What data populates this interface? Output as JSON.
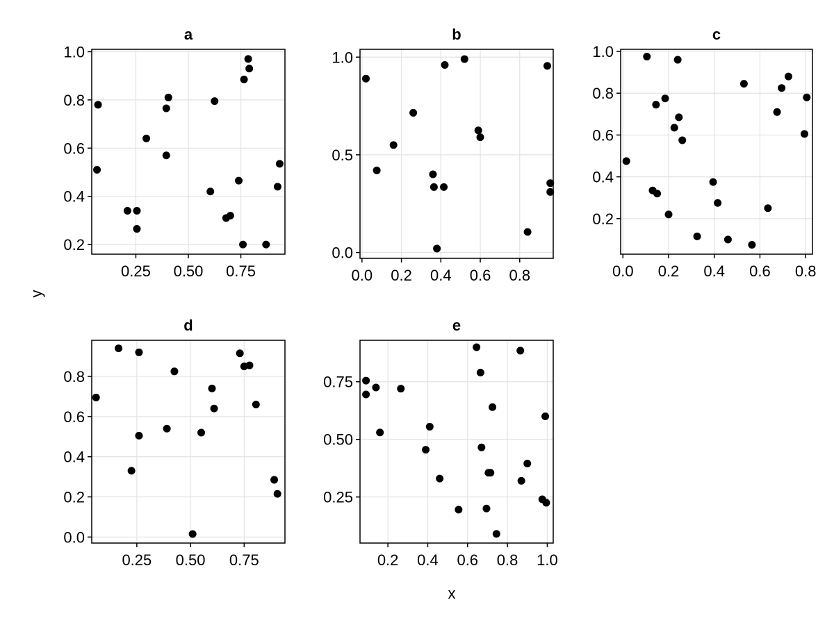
{
  "chart_data": {
    "type": "scatter",
    "xlabel": "x",
    "ylabel": "y",
    "grid": true,
    "point_color": "#000000",
    "panels": [
      {
        "title": "a",
        "xlim": [
          0.04,
          0.96
        ],
        "ylim": [
          0.16,
          1.01
        ],
        "xticks": [
          0.25,
          0.5,
          0.75
        ],
        "xtick_labels": [
          "0.25",
          "0.50",
          "0.75"
        ],
        "yticks": [
          0.2,
          0.4,
          0.6,
          0.8,
          1.0
        ],
        "ytick_labels": [
          "0.2",
          "0.4",
          "0.6",
          "0.8",
          "1.0"
        ],
        "points": [
          [
            0.07,
            0.78
          ],
          [
            0.065,
            0.51
          ],
          [
            0.21,
            0.34
          ],
          [
            0.255,
            0.34
          ],
          [
            0.255,
            0.265
          ],
          [
            0.3,
            0.64
          ],
          [
            0.395,
            0.57
          ],
          [
            0.395,
            0.765
          ],
          [
            0.405,
            0.81
          ],
          [
            0.605,
            0.42
          ],
          [
            0.625,
            0.795
          ],
          [
            0.68,
            0.31
          ],
          [
            0.7,
            0.32
          ],
          [
            0.74,
            0.465
          ],
          [
            0.76,
            0.2
          ],
          [
            0.765,
            0.885
          ],
          [
            0.79,
            0.93
          ],
          [
            0.785,
            0.97
          ],
          [
            0.87,
            0.2
          ],
          [
            0.925,
            0.44
          ],
          [
            0.935,
            0.535
          ]
        ]
      },
      {
        "title": "b",
        "xlim": [
          -0.01,
          0.97
        ],
        "ylim": [
          -0.03,
          1.04
        ],
        "xticks": [
          0.0,
          0.2,
          0.4,
          0.6,
          0.8
        ],
        "xtick_labels": [
          "0.0",
          "0.2",
          "0.4",
          "0.6",
          "0.8"
        ],
        "yticks": [
          0.0,
          0.5,
          1.0
        ],
        "ytick_labels": [
          "0.0",
          "0.5",
          "1.0"
        ],
        "points": [
          [
            0.02,
            0.89
          ],
          [
            0.075,
            0.42
          ],
          [
            0.16,
            0.55
          ],
          [
            0.26,
            0.715
          ],
          [
            0.36,
            0.4
          ],
          [
            0.365,
            0.335
          ],
          [
            0.38,
            0.02
          ],
          [
            0.415,
            0.335
          ],
          [
            0.42,
            0.96
          ],
          [
            0.52,
            0.99
          ],
          [
            0.59,
            0.625
          ],
          [
            0.6,
            0.59
          ],
          [
            0.84,
            0.105
          ],
          [
            0.94,
            0.955
          ],
          [
            0.955,
            0.355
          ],
          [
            0.955,
            0.31
          ]
        ]
      },
      {
        "title": "c",
        "xlim": [
          -0.01,
          0.83
        ],
        "ylim": [
          0.03,
          1.01
        ],
        "xticks": [
          0.0,
          0.2,
          0.4,
          0.6,
          0.8
        ],
        "xtick_labels": [
          "0.0",
          "0.2",
          "0.4",
          "0.6",
          "0.8"
        ],
        "yticks": [
          0.2,
          0.4,
          0.6,
          0.8,
          1.0
        ],
        "ytick_labels": [
          "0.2",
          "0.4",
          "0.6",
          "0.8",
          "1.0"
        ],
        "points": [
          [
            0.015,
            0.475
          ],
          [
            0.105,
            0.975
          ],
          [
            0.13,
            0.335
          ],
          [
            0.15,
            0.32
          ],
          [
            0.145,
            0.745
          ],
          [
            0.185,
            0.775
          ],
          [
            0.2,
            0.22
          ],
          [
            0.225,
            0.635
          ],
          [
            0.24,
            0.96
          ],
          [
            0.245,
            0.685
          ],
          [
            0.26,
            0.575
          ],
          [
            0.325,
            0.115
          ],
          [
            0.395,
            0.375
          ],
          [
            0.415,
            0.275
          ],
          [
            0.46,
            0.1
          ],
          [
            0.53,
            0.845
          ],
          [
            0.565,
            0.075
          ],
          [
            0.635,
            0.25
          ],
          [
            0.675,
            0.71
          ],
          [
            0.695,
            0.825
          ],
          [
            0.725,
            0.88
          ],
          [
            0.795,
            0.605
          ],
          [
            0.805,
            0.78
          ]
        ]
      },
      {
        "title": "d",
        "xlim": [
          0.04,
          0.94
        ],
        "ylim": [
          -0.03,
          0.98
        ],
        "xticks": [
          0.25,
          0.5,
          0.75
        ],
        "xtick_labels": [
          "0.25",
          "0.50",
          "0.75"
        ],
        "yticks": [
          0.0,
          0.2,
          0.4,
          0.6,
          0.8
        ],
        "ytick_labels": [
          "0.0",
          "0.2",
          "0.4",
          "0.6",
          "0.8"
        ],
        "points": [
          [
            0.06,
            0.695
          ],
          [
            0.165,
            0.94
          ],
          [
            0.225,
            0.33
          ],
          [
            0.26,
            0.92
          ],
          [
            0.26,
            0.505
          ],
          [
            0.39,
            0.54
          ],
          [
            0.425,
            0.825
          ],
          [
            0.51,
            0.015
          ],
          [
            0.55,
            0.52
          ],
          [
            0.6,
            0.74
          ],
          [
            0.61,
            0.64
          ],
          [
            0.73,
            0.915
          ],
          [
            0.75,
            0.85
          ],
          [
            0.775,
            0.855
          ],
          [
            0.805,
            0.66
          ],
          [
            0.89,
            0.285
          ],
          [
            0.905,
            0.215
          ]
        ]
      },
      {
        "title": "e",
        "xlim": [
          0.06,
          1.03
        ],
        "ylim": [
          0.05,
          0.93
        ],
        "xticks": [
          0.2,
          0.4,
          0.6,
          0.8,
          1.0
        ],
        "xtick_labels": [
          "0.2",
          "0.4",
          "0.6",
          "0.8",
          "1.0"
        ],
        "yticks": [
          0.25,
          0.5,
          0.75
        ],
        "ytick_labels": [
          "0.25",
          "0.50",
          "0.75"
        ],
        "points": [
          [
            0.09,
            0.695
          ],
          [
            0.09,
            0.755
          ],
          [
            0.14,
            0.725
          ],
          [
            0.16,
            0.53
          ],
          [
            0.265,
            0.72
          ],
          [
            0.39,
            0.455
          ],
          [
            0.41,
            0.555
          ],
          [
            0.46,
            0.33
          ],
          [
            0.555,
            0.195
          ],
          [
            0.645,
            0.9
          ],
          [
            0.665,
            0.79
          ],
          [
            0.67,
            0.465
          ],
          [
            0.695,
            0.2
          ],
          [
            0.705,
            0.355
          ],
          [
            0.715,
            0.355
          ],
          [
            0.725,
            0.64
          ],
          [
            0.745,
            0.09
          ],
          [
            0.865,
            0.885
          ],
          [
            0.87,
            0.32
          ],
          [
            0.9,
            0.395
          ],
          [
            0.975,
            0.24
          ],
          [
            0.99,
            0.6
          ],
          [
            0.995,
            0.225
          ]
        ]
      }
    ]
  }
}
